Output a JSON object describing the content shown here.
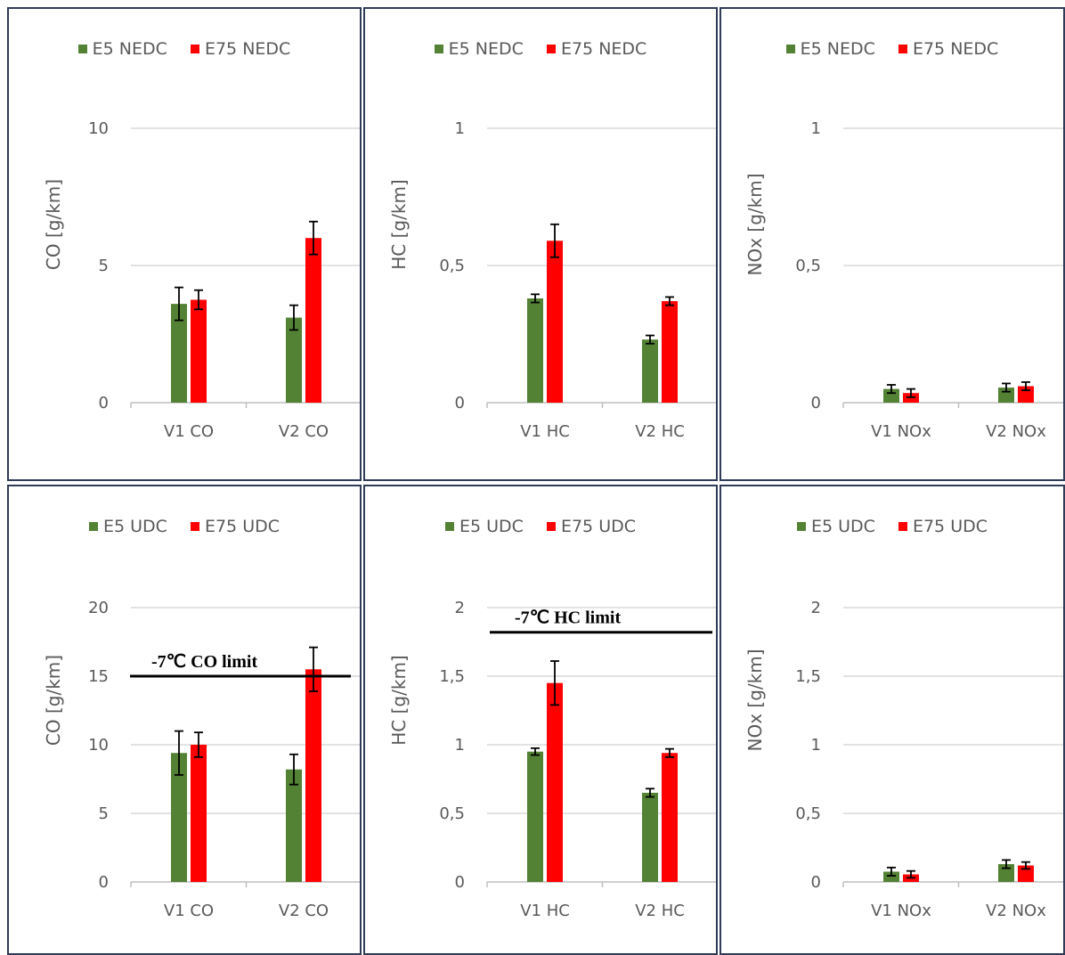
{
  "colors": {
    "e5": "#548235",
    "e75": "#ff0000",
    "grid": "#d9d9d9",
    "axis": "#bfbfbf",
    "text": "#595959",
    "frame": "#2f3c58"
  },
  "chart_data": [
    {
      "type": "bar",
      "categories": [
        "V1 CO",
        "V2 CO"
      ],
      "series": [
        {
          "name": "E5 NEDC",
          "values": [
            3.6,
            3.1
          ],
          "errors": [
            0.6,
            0.45
          ]
        },
        {
          "name": "E75 NEDC",
          "values": [
            3.75,
            6.0
          ],
          "errors": [
            0.35,
            0.6
          ]
        }
      ],
      "ylabel": "CO [g/km]",
      "ylim": [
        0,
        10
      ],
      "yticks": [
        "0",
        "5",
        "10"
      ],
      "ytick_values": [
        0,
        5,
        10
      ],
      "legend": "top",
      "grid": true,
      "limit": null
    },
    {
      "type": "bar",
      "categories": [
        "V1 HC",
        "V2 HC"
      ],
      "series": [
        {
          "name": "E5 NEDC",
          "values": [
            0.38,
            0.23
          ],
          "errors": [
            0.015,
            0.015
          ]
        },
        {
          "name": "E75 NEDC",
          "values": [
            0.59,
            0.37
          ],
          "errors": [
            0.06,
            0.015
          ]
        }
      ],
      "ylabel": "HC [g/km]",
      "ylim": [
        0,
        1
      ],
      "yticks": [
        "0",
        "0,5",
        "1"
      ],
      "ytick_values": [
        0,
        0.5,
        1
      ],
      "legend": "top",
      "grid": true,
      "limit": null
    },
    {
      "type": "bar",
      "categories": [
        "V1 NOx",
        "V2 NOx"
      ],
      "series": [
        {
          "name": "E5 NEDC",
          "values": [
            0.05,
            0.055
          ],
          "errors": [
            0.015,
            0.015
          ]
        },
        {
          "name": "E75 NEDC",
          "values": [
            0.035,
            0.06
          ],
          "errors": [
            0.015,
            0.015
          ]
        }
      ],
      "ylabel": "NOx [g/km]",
      "ylim": [
        0,
        1
      ],
      "yticks": [
        "0",
        "0,5",
        "1"
      ],
      "ytick_values": [
        0,
        0.5,
        1
      ],
      "legend": "top",
      "grid": true,
      "limit": null
    },
    {
      "type": "bar",
      "categories": [
        "V1 CO",
        "V2 CO"
      ],
      "series": [
        {
          "name": "E5 UDC",
          "values": [
            9.4,
            8.2
          ],
          "errors": [
            1.6,
            1.1
          ]
        },
        {
          "name": "E75 UDC",
          "values": [
            10.0,
            15.5
          ],
          "errors": [
            0.9,
            1.6
          ]
        }
      ],
      "ylabel": "CO [g/km]",
      "ylim": [
        0,
        20
      ],
      "yticks": [
        "0",
        "5",
        "10",
        "15",
        "20"
      ],
      "ytick_values": [
        0,
        5,
        10,
        15,
        20
      ],
      "legend": "top",
      "grid": true,
      "limit": {
        "value": 15,
        "label": "-7℃ CO limit"
      }
    },
    {
      "type": "bar",
      "categories": [
        "V1 HC",
        "V2 HC"
      ],
      "series": [
        {
          "name": "E5 UDC",
          "values": [
            0.95,
            0.65
          ],
          "errors": [
            0.025,
            0.03
          ]
        },
        {
          "name": "E75 UDC",
          "values": [
            1.45,
            0.94
          ],
          "errors": [
            0.16,
            0.03
          ]
        }
      ],
      "ylabel": "HC [g/km]",
      "ylim": [
        0,
        2
      ],
      "yticks": [
        "0",
        "0,5",
        "1",
        "1,5",
        "2"
      ],
      "ytick_values": [
        0,
        0.5,
        1,
        1.5,
        2
      ],
      "legend": "top",
      "grid": true,
      "limit": {
        "value": 1.82,
        "label": "-7℃ HC limit"
      }
    },
    {
      "type": "bar",
      "categories": [
        "V1 NOx",
        "V2 NOx"
      ],
      "series": [
        {
          "name": "E5 UDC",
          "values": [
            0.075,
            0.13
          ],
          "errors": [
            0.03,
            0.03
          ]
        },
        {
          "name": "E75 UDC",
          "values": [
            0.055,
            0.12
          ],
          "errors": [
            0.025,
            0.025
          ]
        }
      ],
      "ylabel": "NOx [g/km]",
      "ylim": [
        0,
        2
      ],
      "yticks": [
        "0",
        "0,5",
        "1",
        "1,5",
        "2"
      ],
      "ytick_values": [
        0,
        0.5,
        1,
        1.5,
        2
      ],
      "legend": "top",
      "grid": true,
      "limit": null
    }
  ]
}
